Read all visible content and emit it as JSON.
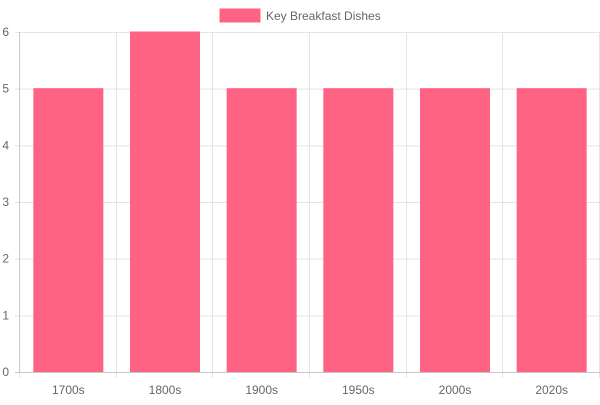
{
  "chart_data": {
    "type": "bar",
    "categories": [
      "1700s",
      "1800s",
      "1900s",
      "1950s",
      "2000s",
      "2020s"
    ],
    "series": [
      {
        "name": "Key Breakfast Dishes",
        "values": [
          5,
          6,
          5,
          5,
          5,
          5
        ]
      }
    ],
    "ylim": [
      0,
      6
    ],
    "yticks": [
      0,
      1,
      2,
      3,
      4,
      5,
      6
    ],
    "grid": true,
    "legend_position": "top",
    "colors": {
      "bar_fill": "#ff6384",
      "bar_stroke": "#ff6384",
      "grid": "#e5e5e5",
      "axis": "#c8c8c8",
      "tick_text": "#666666",
      "legend_text": "#666666"
    }
  }
}
